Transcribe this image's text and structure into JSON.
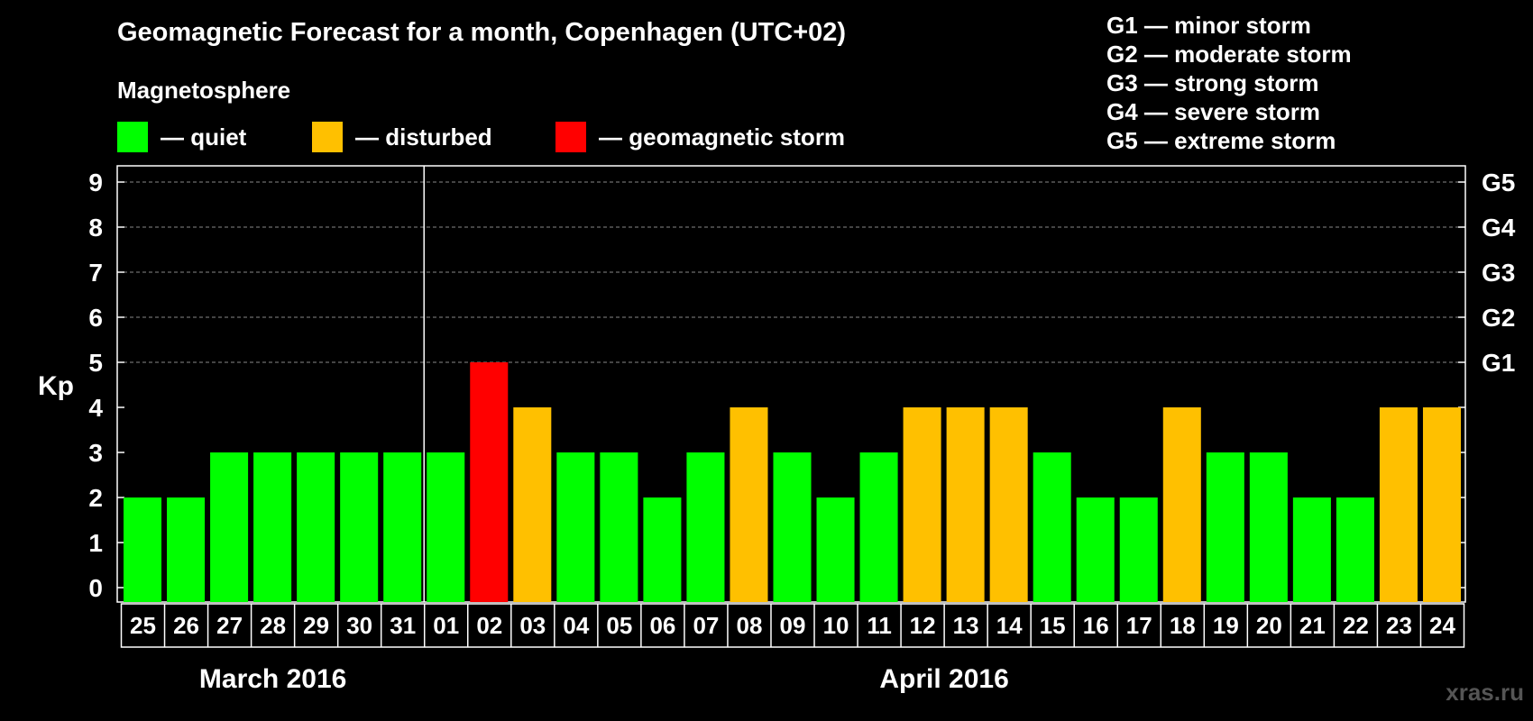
{
  "header": {
    "title": "Geomagnetic Forecast for a month, Copenhagen (UTC+02)",
    "subtitle": "Magnetosphere"
  },
  "legend": [
    {
      "label": "— quiet",
      "color": "#00ff00"
    },
    {
      "label": "— disturbed",
      "color": "#ffc000"
    },
    {
      "label": "— geomagnetic storm",
      "color": "#ff0000"
    }
  ],
  "storm_scale": [
    "G1 — minor storm",
    "G2 — moderate storm",
    "G3 — strong storm",
    "G4 — severe storm",
    "G5 — extreme storm"
  ],
  "watermark": "xras.ru",
  "chart_data": {
    "type": "bar",
    "title": "Geomagnetic Forecast for a month, Copenhagen (UTC+02)",
    "ylabel": "Kp",
    "ylim": [
      0,
      9
    ],
    "yticks": [
      "0",
      "1",
      "2",
      "3",
      "4",
      "5",
      "6",
      "7",
      "8",
      "9"
    ],
    "right_ticks": [
      {
        "value": 5,
        "label": "G1"
      },
      {
        "value": 6,
        "label": "G2"
      },
      {
        "value": 7,
        "label": "G3"
      },
      {
        "value": 8,
        "label": "G4"
      },
      {
        "value": 9,
        "label": "G5"
      }
    ],
    "grid": true,
    "categories": [
      "25",
      "26",
      "27",
      "28",
      "29",
      "30",
      "31",
      "01",
      "02",
      "03",
      "04",
      "05",
      "06",
      "07",
      "08",
      "09",
      "10",
      "11",
      "12",
      "13",
      "14",
      "15",
      "16",
      "17",
      "18",
      "19",
      "20",
      "21",
      "22",
      "23",
      "24"
    ],
    "values": [
      2,
      2,
      3,
      3,
      3,
      3,
      3,
      3,
      5,
      4,
      3,
      3,
      2,
      3,
      4,
      3,
      2,
      3,
      4,
      4,
      4,
      3,
      2,
      2,
      4,
      3,
      3,
      2,
      2,
      4,
      4
    ],
    "colors": {
      "quiet": "#00ff00",
      "disturbed": "#ffc000",
      "storm": "#ff0000"
    },
    "months": [
      {
        "label": "March 2016",
        "start": 0,
        "end": 6
      },
      {
        "label": "April 2016",
        "start": 7,
        "end": 30
      }
    ]
  }
}
